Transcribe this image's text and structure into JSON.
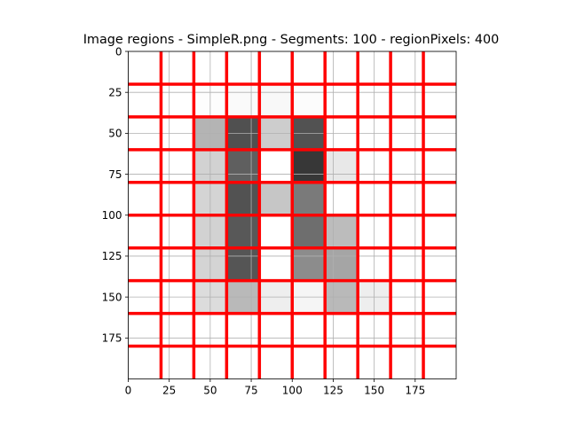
{
  "chart_data": {
    "type": "heatmap",
    "title": "Image regions - SimpleR.png - Segments: 100 - regionPixels: 400",
    "xlabel": "",
    "ylabel": "",
    "xlim": [
      0,
      200
    ],
    "ylim": [
      200,
      0
    ],
    "x_ticks": [
      0,
      25,
      50,
      75,
      100,
      125,
      150,
      175
    ],
    "y_ticks": [
      0,
      25,
      50,
      75,
      100,
      125,
      150,
      175
    ],
    "grid": true,
    "cell_size": 20,
    "rows": 10,
    "cols": 10,
    "intensity_scale": "grayscale 0=black 255=white",
    "cells": [
      [
        255,
        255,
        255,
        255,
        255,
        255,
        255,
        255,
        255,
        255
      ],
      [
        255,
        255,
        253,
        250,
        248,
        252,
        255,
        255,
        255,
        255
      ],
      [
        255,
        255,
        180,
        80,
        205,
        82,
        255,
        255,
        255,
        255
      ],
      [
        255,
        255,
        210,
        95,
        255,
        55,
        232,
        255,
        255,
        255
      ],
      [
        255,
        255,
        212,
        82,
        198,
        122,
        255,
        255,
        255,
        255
      ],
      [
        255,
        255,
        210,
        88,
        255,
        110,
        188,
        255,
        255,
        255
      ],
      [
        255,
        255,
        212,
        85,
        255,
        140,
        165,
        255,
        255,
        255
      ],
      [
        255,
        255,
        220,
        185,
        238,
        245,
        185,
        238,
        255,
        255
      ],
      [
        255,
        255,
        255,
        255,
        255,
        255,
        255,
        255,
        255,
        255
      ],
      [
        255,
        255,
        255,
        255,
        255,
        255,
        255,
        255,
        255,
        255
      ]
    ],
    "boundary_color": "#ff0000",
    "boundary_positions_x": [
      20,
      40,
      60,
      80,
      100,
      120,
      140,
      160,
      180
    ],
    "boundary_positions_y": [
      20,
      40,
      60,
      80,
      100,
      120,
      140,
      160,
      180
    ],
    "grid_color": "#b0b0b0"
  }
}
